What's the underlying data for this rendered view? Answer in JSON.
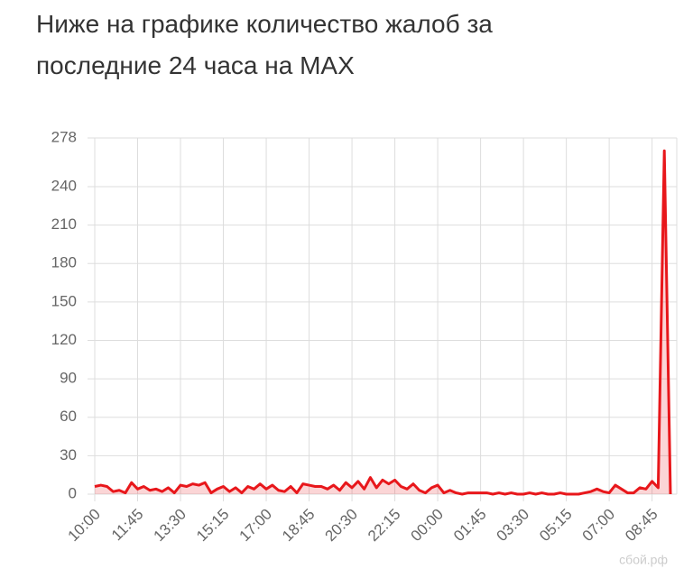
{
  "chart_data": {
    "type": "line",
    "title": "Ниже на графике количество жалоб за последние 24 часа на MAX",
    "categories": [
      "10:00",
      null,
      null,
      null,
      null,
      null,
      null,
      "11:45",
      null,
      null,
      null,
      null,
      null,
      null,
      "13:30",
      null,
      null,
      null,
      null,
      null,
      null,
      "15:15",
      null,
      null,
      null,
      null,
      null,
      null,
      "17:00",
      null,
      null,
      null,
      null,
      null,
      null,
      "18:45",
      null,
      null,
      null,
      null,
      null,
      null,
      "20:30",
      null,
      null,
      null,
      null,
      null,
      null,
      "22:15",
      null,
      null,
      null,
      null,
      null,
      null,
      "00:00",
      null,
      null,
      null,
      null,
      null,
      null,
      "01:45",
      null,
      null,
      null,
      null,
      null,
      null,
      "03:30",
      null,
      null,
      null,
      null,
      null,
      null,
      "05:15",
      null,
      null,
      null,
      null,
      null,
      null,
      "07:00",
      null,
      null,
      null,
      null,
      null,
      null,
      "08:45",
      null,
      null,
      null
    ],
    "values": [
      6,
      7,
      6,
      2,
      3,
      1,
      9,
      4,
      6,
      3,
      4,
      2,
      5,
      1,
      7,
      6,
      8,
      7,
      9,
      1,
      4,
      6,
      2,
      5,
      1,
      6,
      4,
      8,
      4,
      7,
      3,
      2,
      6,
      1,
      8,
      7,
      6,
      6,
      4,
      7,
      3,
      9,
      5,
      10,
      4,
      13,
      5,
      11,
      8,
      11,
      6,
      4,
      8,
      3,
      1,
      5,
      7,
      1,
      3,
      1,
      0,
      1,
      1,
      1,
      1,
      0,
      1,
      0,
      1,
      0,
      0,
      1,
      0,
      1,
      0,
      0,
      1,
      0,
      0,
      0,
      1,
      2,
      4,
      2,
      1,
      7,
      4,
      1,
      1,
      5,
      4,
      10,
      5,
      268,
      0
    ],
    "color": "#e8171b",
    "ylim": [
      0,
      278
    ],
    "yticks": [
      0,
      30,
      60,
      90,
      120,
      150,
      180,
      210,
      240,
      278
    ],
    "grid": true,
    "watermark": "сбой.рф"
  }
}
